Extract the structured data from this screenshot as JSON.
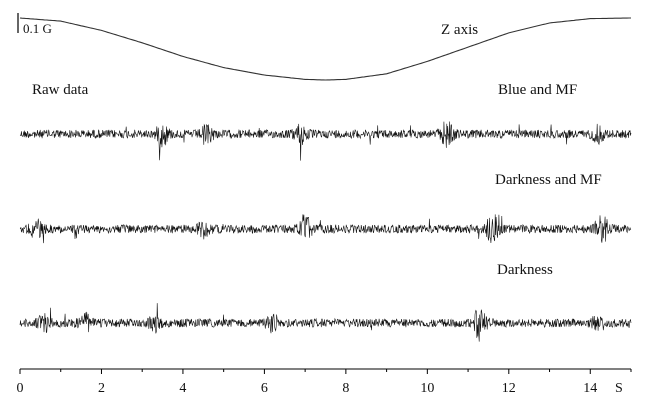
{
  "chart_data": {
    "type": "line",
    "x_axis": {
      "range": [
        0,
        15
      ],
      "ticks": [
        0,
        2,
        4,
        6,
        8,
        10,
        12,
        14
      ],
      "tick_labels": [
        "0",
        "2",
        "4",
        "6",
        "8",
        "10",
        "12",
        "14"
      ],
      "unit_label": "S"
    },
    "scale_bar": {
      "label": "0.1 G"
    },
    "magnetic_field": {
      "label": "Z axis",
      "x": [
        0,
        1,
        2,
        3,
        4,
        5,
        6,
        7,
        7.5,
        8,
        9,
        10,
        11,
        12,
        13,
        14,
        15
      ],
      "y": [
        0.0,
        -0.005,
        -0.02,
        -0.04,
        -0.062,
        -0.08,
        -0.092,
        -0.099,
        -0.1,
        -0.099,
        -0.09,
        -0.07,
        -0.047,
        -0.024,
        -0.008,
        -0.001,
        0.0
      ]
    },
    "series": [
      {
        "name": "Blue and MF",
        "bursts": [
          {
            "x": 3.5,
            "amp": 2.4
          },
          {
            "x": 4.6,
            "amp": 1.7
          },
          {
            "x": 6.9,
            "amp": 2.2
          },
          {
            "x": 10.5,
            "amp": 3.2
          },
          {
            "x": 14.2,
            "amp": 1.6
          }
        ]
      },
      {
        "name": "Darkness and MF",
        "bursts": [
          {
            "x": 0.4,
            "amp": 1.8
          },
          {
            "x": 4.5,
            "amp": 1.7
          },
          {
            "x": 7.0,
            "amp": 3.0
          },
          {
            "x": 11.6,
            "amp": 3.4
          },
          {
            "x": 14.3,
            "amp": 2.8
          }
        ]
      },
      {
        "name": "Darkness",
        "bursts": [
          {
            "x": 0.6,
            "amp": 1.6
          },
          {
            "x": 1.6,
            "amp": 1.8
          },
          {
            "x": 3.3,
            "amp": 1.7
          },
          {
            "x": 6.2,
            "amp": 1.8
          },
          {
            "x": 11.3,
            "amp": 3.8
          },
          {
            "x": 14.2,
            "amp": 1.6
          }
        ]
      }
    ],
    "annotation": "Raw data"
  }
}
